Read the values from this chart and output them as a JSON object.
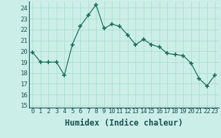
{
  "xlabel": "Humidex (Indice chaleur)",
  "x": [
    0,
    1,
    2,
    3,
    4,
    5,
    6,
    7,
    8,
    9,
    10,
    11,
    12,
    13,
    14,
    15,
    16,
    17,
    18,
    19,
    20,
    21,
    22,
    23
  ],
  "y": [
    19.9,
    19.0,
    19.0,
    19.0,
    17.8,
    20.6,
    22.3,
    23.3,
    24.3,
    22.1,
    22.5,
    22.3,
    21.5,
    20.6,
    21.1,
    20.6,
    20.4,
    19.8,
    19.7,
    19.6,
    18.9,
    17.5,
    16.8,
    17.8
  ],
  "line_color": "#1a6b5a",
  "marker_color": "#1a6b5a",
  "bg_color": "#cceee8",
  "grid_color": "#aaddcc",
  "ylim": [
    14.8,
    24.6
  ],
  "yticks": [
    15,
    16,
    17,
    18,
    19,
    20,
    21,
    22,
    23,
    24
  ],
  "xticks": [
    0,
    1,
    2,
    3,
    4,
    5,
    6,
    7,
    8,
    9,
    10,
    11,
    12,
    13,
    14,
    15,
    16,
    17,
    18,
    19,
    20,
    21,
    22,
    23
  ],
  "tick_label_fontsize": 6.5,
  "xlabel_fontsize": 8.5
}
